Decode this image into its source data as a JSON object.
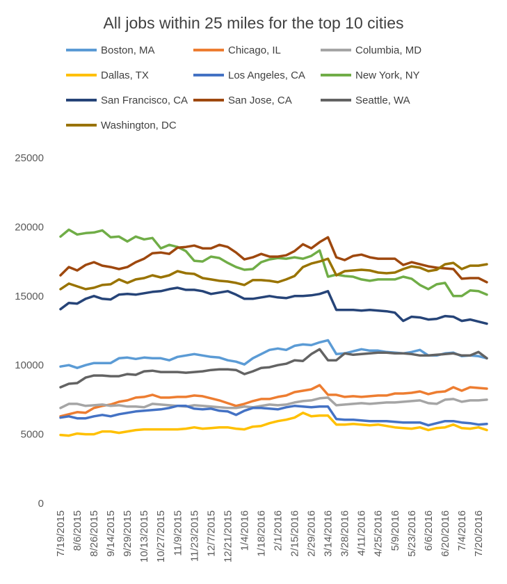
{
  "chart_data": {
    "type": "line",
    "title": "All jobs within 25 miles for the top 10 cities",
    "xlabel": "",
    "ylabel": "",
    "ylim": [
      0,
      25000
    ],
    "yticks": [
      0,
      5000,
      10000,
      15000,
      20000,
      25000
    ],
    "grid": false,
    "legend_position": "top",
    "x_tick_labels": [
      "7/19/2015",
      "8/6/2015",
      "8/26/2015",
      "9/14/2015",
      "9/29/2015",
      "10/13/2015",
      "10/27/2015",
      "11/9/2015",
      "11/23/2015",
      "12/7/2015",
      "12/21/2015",
      "1/4/2016",
      "1/18/2016",
      "2/1/2016",
      "2/15/2016",
      "2/29/2016",
      "3/14/2016",
      "3/28/2016",
      "4/11/2016",
      "4/25/2016",
      "5/9/2016",
      "5/23/2016",
      "6/6/2016",
      "6/20/2016",
      "7/4/2016",
      "7/20/2016"
    ],
    "x_tick_indices": [
      0,
      2,
      4,
      6,
      8,
      10,
      12,
      14,
      16,
      18,
      20,
      22,
      24,
      26,
      28,
      30,
      32,
      34,
      36,
      38,
      40,
      42,
      44,
      46,
      48,
      50
    ],
    "num_points": 52,
    "series": [
      {
        "name": "Boston, MA",
        "color": "#5B9BD5",
        "values": [
          9900,
          10000,
          9800,
          10000,
          10150,
          10150,
          10150,
          10500,
          10550,
          10450,
          10550,
          10500,
          10500,
          10350,
          10600,
          10700,
          10800,
          10700,
          10600,
          10550,
          10350,
          10250,
          10050,
          10500,
          10800,
          11100,
          11200,
          11100,
          11400,
          11500,
          11450,
          11650,
          11800,
          10800,
          10850,
          11000,
          11150,
          11050,
          11050,
          10950,
          10900,
          10850,
          10950,
          11100,
          10700,
          10700,
          10850,
          10900,
          10650,
          10700,
          10650,
          10500
        ]
      },
      {
        "name": "Chicago, IL",
        "color": "#ED7D31",
        "values": [
          6300,
          6450,
          6600,
          6550,
          6900,
          7050,
          7150,
          7350,
          7450,
          7650,
          7700,
          7850,
          7650,
          7650,
          7700,
          7700,
          7800,
          7750,
          7600,
          7450,
          7250,
          7050,
          7200,
          7400,
          7550,
          7550,
          7700,
          7800,
          8050,
          8150,
          8250,
          8550,
          7850,
          7850,
          7700,
          7750,
          7700,
          7750,
          7800,
          7800,
          7950,
          7950,
          8000,
          8100,
          7900,
          8050,
          8100,
          8400,
          8150,
          8400,
          8350,
          8300
        ]
      },
      {
        "name": "Columbia, MD",
        "color": "#A5A5A5",
        "values": [
          6900,
          7200,
          7200,
          7050,
          7100,
          7150,
          7050,
          7100,
          7000,
          7000,
          6950,
          7200,
          7150,
          7100,
          7050,
          7000,
          7100,
          7050,
          7000,
          6950,
          6900,
          6900,
          7000,
          6950,
          7050,
          7150,
          7100,
          7150,
          7300,
          7400,
          7450,
          7600,
          7650,
          7100,
          7150,
          7200,
          7250,
          7200,
          7250,
          7300,
          7300,
          7350,
          7400,
          7450,
          7250,
          7200,
          7500,
          7550,
          7350,
          7450,
          7450,
          7500
        ]
      },
      {
        "name": "Dallas, TX",
        "color": "#FFC000",
        "values": [
          4950,
          4900,
          5050,
          5000,
          5000,
          5200,
          5200,
          5100,
          5200,
          5300,
          5350,
          5350,
          5350,
          5350,
          5350,
          5400,
          5500,
          5400,
          5450,
          5500,
          5500,
          5400,
          5350,
          5550,
          5600,
          5800,
          5950,
          6050,
          6200,
          6550,
          6300,
          6350,
          6350,
          5700,
          5700,
          5750,
          5700,
          5650,
          5700,
          5600,
          5500,
          5450,
          5400,
          5500,
          5300,
          5450,
          5500,
          5700,
          5450,
          5400,
          5500,
          5300
        ]
      },
      {
        "name": "Los Angeles, CA",
        "color": "#4472C4",
        "values": [
          6200,
          6300,
          6150,
          6150,
          6300,
          6400,
          6300,
          6450,
          6550,
          6650,
          6700,
          6750,
          6800,
          6900,
          7050,
          7050,
          6850,
          6800,
          6850,
          6700,
          6650,
          6400,
          6700,
          6900,
          6900,
          6850,
          6800,
          6950,
          7050,
          7000,
          6950,
          7000,
          7000,
          6100,
          6050,
          6050,
          6000,
          5950,
          5950,
          5950,
          5900,
          5850,
          5850,
          5850,
          5650,
          5800,
          5950,
          5950,
          5850,
          5800,
          5700,
          5750
        ]
      },
      {
        "name": "New York, NY",
        "color": "#70AD47",
        "values": [
          19300,
          19800,
          19450,
          19550,
          19600,
          19750,
          19250,
          19300,
          18950,
          19300,
          19100,
          19200,
          18450,
          18700,
          18550,
          18250,
          17550,
          17500,
          17850,
          17750,
          17400,
          17100,
          16900,
          16950,
          17450,
          17650,
          17750,
          17700,
          17800,
          17700,
          17900,
          18300,
          16400,
          16550,
          16450,
          16400,
          16200,
          16100,
          16200,
          16200,
          16200,
          16400,
          16250,
          15800,
          15500,
          15850,
          15950,
          15000,
          15000,
          15400,
          15350,
          15100
        ]
      },
      {
        "name": "San Francisco, CA",
        "color": "#264478",
        "values": [
          14050,
          14500,
          14450,
          14800,
          15000,
          14800,
          14750,
          15100,
          15150,
          15100,
          15200,
          15300,
          15350,
          15500,
          15600,
          15450,
          15450,
          15350,
          15150,
          15250,
          15350,
          15100,
          14800,
          14800,
          14900,
          15000,
          14900,
          14850,
          15000,
          15000,
          15050,
          15150,
          15350,
          14000,
          14000,
          14000,
          13950,
          14000,
          13950,
          13900,
          13800,
          13200,
          13500,
          13450,
          13300,
          13350,
          13550,
          13500,
          13200,
          13300,
          13150,
          13000
        ]
      },
      {
        "name": "San Jose, CA",
        "color": "#9E480E",
        "values": [
          16500,
          17100,
          16850,
          17250,
          17450,
          17200,
          17100,
          16950,
          17100,
          17450,
          17700,
          18100,
          18150,
          18050,
          18500,
          18550,
          18650,
          18450,
          18450,
          18700,
          18550,
          18150,
          17650,
          17800,
          18050,
          17850,
          17850,
          17950,
          18250,
          18750,
          18450,
          18900,
          19250,
          17800,
          17600,
          17900,
          18000,
          17800,
          17700,
          17700,
          17700,
          17250,
          17450,
          17300,
          17150,
          17050,
          17000,
          16950,
          16250,
          16300,
          16300,
          16000
        ]
      },
      {
        "name": "Seattle, WA",
        "color": "#636363",
        "values": [
          8400,
          8650,
          8700,
          9100,
          9250,
          9250,
          9200,
          9200,
          9350,
          9300,
          9550,
          9600,
          9500,
          9500,
          9500,
          9450,
          9500,
          9550,
          9650,
          9700,
          9700,
          9650,
          9350,
          9550,
          9800,
          9850,
          10000,
          10100,
          10350,
          10300,
          10800,
          11150,
          10350,
          10350,
          10850,
          10750,
          10800,
          10850,
          10900,
          10900,
          10850,
          10850,
          10800,
          10700,
          10700,
          10750,
          10800,
          10850,
          10700,
          10700,
          10950,
          10500
        ]
      },
      {
        "name": "Washington, DC",
        "color": "#997300",
        "values": [
          15500,
          15900,
          15700,
          15500,
          15600,
          15800,
          15850,
          16200,
          15950,
          16200,
          16300,
          16500,
          16350,
          16500,
          16800,
          16650,
          16600,
          16300,
          16200,
          16100,
          16050,
          15950,
          15800,
          16150,
          16150,
          16100,
          16000,
          16200,
          16450,
          17100,
          17350,
          17500,
          17700,
          16500,
          16800,
          16850,
          16900,
          16850,
          16700,
          16650,
          16700,
          16950,
          17150,
          17050,
          16800,
          16900,
          17300,
          17400,
          16950,
          17200,
          17200,
          17300
        ]
      }
    ]
  }
}
